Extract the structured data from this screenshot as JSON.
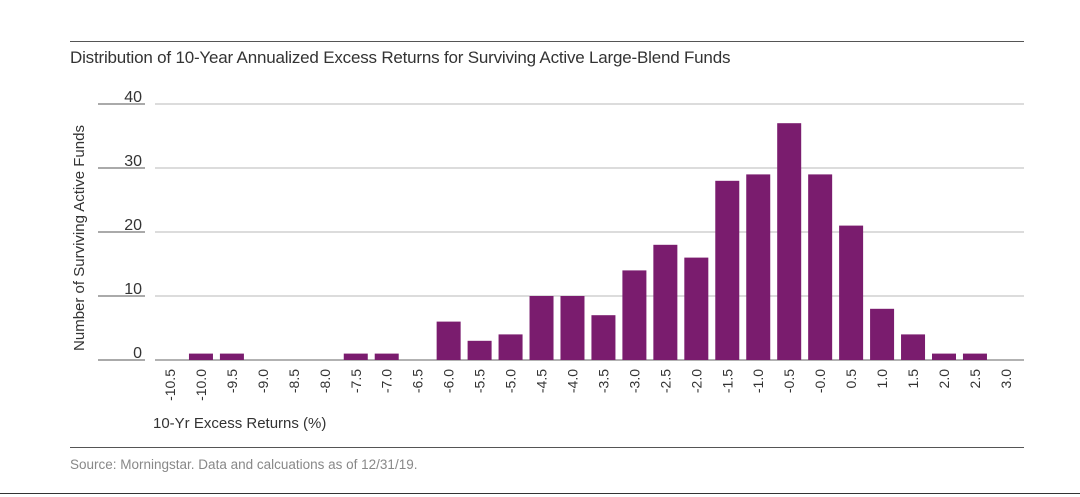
{
  "chart_data": {
    "type": "bar",
    "title": "Distribution of 10-Year Annualized Excess Returns for Surviving Active Large-Blend Funds",
    "xlabel": "10-Yr Excess Returns (%)",
    "ylabel": "Number of Surviving Active Funds",
    "categories": [
      "-10.5",
      "-10.0",
      "-9.5",
      "-9.0",
      "-8.5",
      "-8.0",
      "-7.5",
      "-7.0",
      "-6.5",
      "-6.0",
      "-5.5",
      "-5.0",
      "-4.5",
      "-4.0",
      "-3.5",
      "-3.0",
      "-2.5",
      "-2.0",
      "-1.5",
      "-1.0",
      "-0.5",
      "-0.0",
      "0.5",
      "1.0",
      "1.5",
      "2.0",
      "2.5",
      "3.0"
    ],
    "values": [
      0,
      1,
      1,
      0,
      0,
      0,
      1,
      1,
      0,
      6,
      3,
      4,
      10,
      10,
      7,
      14,
      18,
      16,
      28,
      29,
      37,
      29,
      21,
      8,
      4,
      1,
      1,
      0
    ],
    "yticks": [
      0,
      10,
      20,
      30,
      40
    ],
    "ylim": [
      0,
      40
    ],
    "grid": true,
    "bar_color": "#7a1c6e"
  },
  "source": "Source: Morningstar. Data and calcuations as of 12/31/19."
}
